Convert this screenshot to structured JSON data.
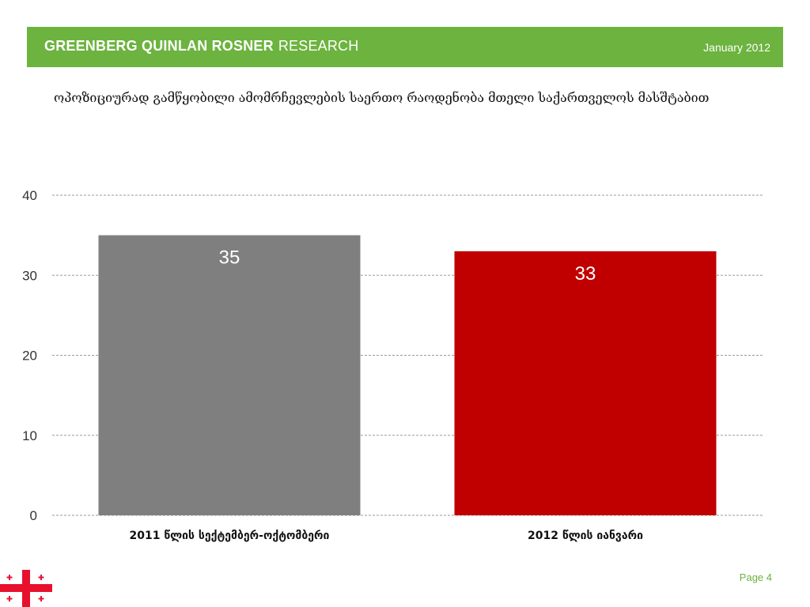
{
  "header": {
    "brand_bold": "GREENBERG QUINLAN ROSNER",
    "brand_light": "RESEARCH",
    "date": "January 2012",
    "bar_color": "#6cb33f"
  },
  "title": "ოპოზიციურად გამწყობილი ამომრჩევლების საერთო რაოდენობა მთელი საქართველოს მასშტაბით",
  "chart_data": {
    "type": "bar",
    "categories": [
      "2011 წლის სექტემბერ-ოქტომბერი",
      "2012 წლის იანვარი"
    ],
    "values": [
      35,
      33
    ],
    "data_labels": [
      "35",
      "33"
    ],
    "colors": [
      "#7f7f7f",
      "#c00000"
    ],
    "ylim": [
      0,
      40
    ],
    "yticks": [
      0,
      10,
      20,
      30,
      40
    ],
    "grid": true,
    "title": "",
    "xlabel": "",
    "ylabel": ""
  },
  "footer": {
    "page": "Page 4",
    "flag_icon": "georgian-flag-icon"
  }
}
